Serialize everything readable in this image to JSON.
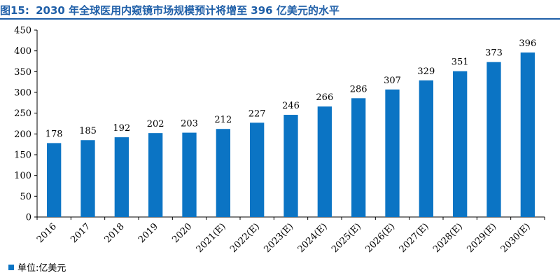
{
  "title": {
    "label": "图15:",
    "text": "2030 年全球医用内窥镜市场规模预计将增至 396 亿美元的水平"
  },
  "colors": {
    "bar": "#0b74c4",
    "title": "#1f5fa8"
  },
  "chart_data": {
    "type": "bar",
    "categories": [
      "2016",
      "2017",
      "2018",
      "2019",
      "2020",
      "2021(E)",
      "2022(E)",
      "2023(E)",
      "2024(E)",
      "2025(E)",
      "2026(E)",
      "2027(E)",
      "2028(E)",
      "2029(E)",
      "2030(E)"
    ],
    "series": [
      {
        "name": "单位:亿美元",
        "values": [
          178,
          185,
          192,
          202,
          203,
          212,
          227,
          246,
          266,
          286,
          307,
          329,
          351,
          373,
          396
        ]
      }
    ],
    "ylim": [
      0,
      450
    ],
    "yticks": [
      0,
      50,
      100,
      150,
      200,
      250,
      300,
      350,
      400,
      450
    ],
    "grid": false,
    "legend_position": "bottom-left"
  }
}
